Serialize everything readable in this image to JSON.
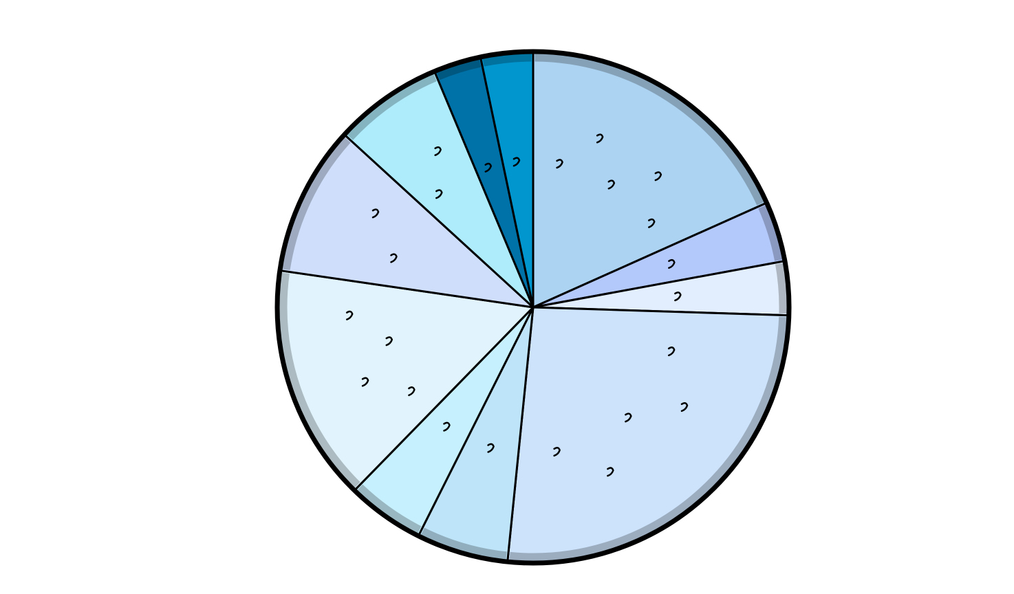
{
  "chart_data": {
    "type": "pie",
    "title": "",
    "start_angle_deg": 0,
    "direction": "clockwise",
    "slices": [
      {
        "value": 18.3,
        "color": "#acd3f2"
      },
      {
        "value": 3.8,
        "color": "#b4c9fb"
      },
      {
        "value": 3.4,
        "color": "#e2eefd"
      },
      {
        "value": 26.1,
        "color": "#cce3fb"
      },
      {
        "value": 5.8,
        "color": "#bde4f8"
      },
      {
        "value": 4.9,
        "color": "#c6f0fd"
      },
      {
        "value": 15.0,
        "color": "#e1f4fd"
      },
      {
        "value": 9.5,
        "color": "#cfdffb"
      },
      {
        "value": 6.9,
        "color": "#aeecfc"
      },
      {
        "value": 3.0,
        "color": "#0072a7"
      },
      {
        "value": 3.3,
        "color": "#0296cf"
      }
    ]
  }
}
